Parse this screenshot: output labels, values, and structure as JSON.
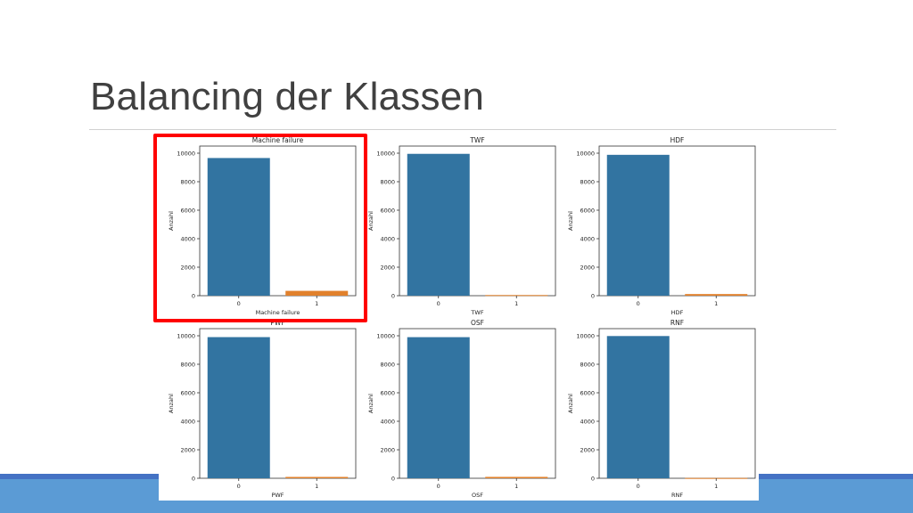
{
  "slide": {
    "title": "Balancing der Klassen"
  },
  "colors": {
    "bar_class_0": "#3274a1",
    "bar_class_1": "#e1812c",
    "highlight": "#ff0000",
    "footer": "#5b9bd5",
    "footer_dark": "#4472c4"
  },
  "chart_data": [
    {
      "type": "bar",
      "title": "Machine failure",
      "xlabel": "Machine failure",
      "ylabel": "Anzahl",
      "categories": [
        "0",
        "1"
      ],
      "values": [
        9661,
        339
      ],
      "ylim": [
        0,
        10000
      ],
      "yticks": [
        0,
        2000,
        4000,
        6000,
        8000,
        10000
      ],
      "highlighted": true
    },
    {
      "type": "bar",
      "title": "TWF",
      "xlabel": "TWF",
      "ylabel": "Anzahl",
      "categories": [
        "0",
        "1"
      ],
      "values": [
        9954,
        46
      ],
      "ylim": [
        0,
        10000
      ],
      "yticks": [
        0,
        2000,
        4000,
        6000,
        8000,
        10000
      ]
    },
    {
      "type": "bar",
      "title": "HDF",
      "xlabel": "HDF",
      "ylabel": "Anzahl",
      "categories": [
        "0",
        "1"
      ],
      "values": [
        9885,
        115
      ],
      "ylim": [
        0,
        10000
      ],
      "yticks": [
        0,
        2000,
        4000,
        6000,
        8000,
        10000
      ]
    },
    {
      "type": "bar",
      "title": "PWF",
      "xlabel": "PWF",
      "ylabel": "Anzahl",
      "categories": [
        "0",
        "1"
      ],
      "values": [
        9905,
        95
      ],
      "ylim": [
        0,
        10000
      ],
      "yticks": [
        0,
        2000,
        4000,
        6000,
        8000,
        10000
      ]
    },
    {
      "type": "bar",
      "title": "OSF",
      "xlabel": "OSF",
      "ylabel": "Anzahl",
      "categories": [
        "0",
        "1"
      ],
      "values": [
        9902,
        98
      ],
      "ylim": [
        0,
        10000
      ],
      "yticks": [
        0,
        2000,
        4000,
        6000,
        8000,
        10000
      ]
    },
    {
      "type": "bar",
      "title": "RNF",
      "xlabel": "RNF",
      "ylabel": "Anzahl",
      "categories": [
        "0",
        "1"
      ],
      "values": [
        9981,
        19
      ],
      "ylim": [
        0,
        10000
      ],
      "yticks": [
        0,
        2000,
        4000,
        6000,
        8000,
        10000
      ]
    }
  ]
}
